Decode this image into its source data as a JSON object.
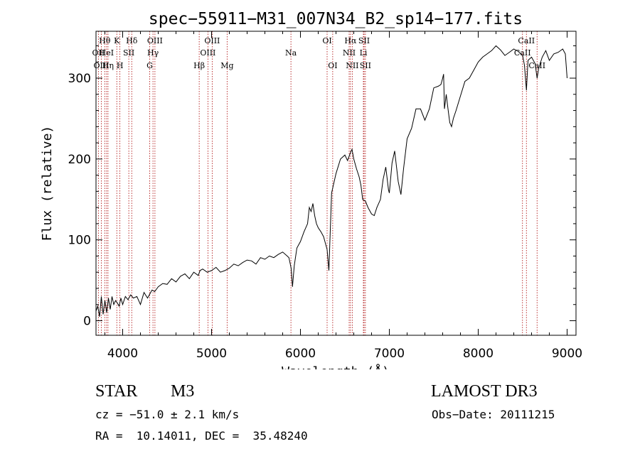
{
  "chart_data": {
    "type": "line",
    "title": "spec−55911−M31_007N34_B2_sp14−177.fits",
    "xlabel": "Wavelength (Å)",
    "ylabel": "Flux (relative)",
    "xlim": [
      3700,
      9100
    ],
    "ylim": [
      -18,
      358
    ],
    "xticks": [
      4000,
      5000,
      6000,
      7000,
      8000,
      9000
    ],
    "yticks": [
      0,
      100,
      200,
      300
    ],
    "grid": false,
    "series": [
      {
        "name": "flux",
        "x": [
          3700,
          3720,
          3740,
          3760,
          3780,
          3800,
          3820,
          3840,
          3860,
          3880,
          3900,
          3920,
          3940,
          3960,
          3980,
          4000,
          4030,
          4060,
          4090,
          4120,
          4160,
          4200,
          4240,
          4280,
          4300,
          4330,
          4360,
          4400,
          4450,
          4500,
          4550,
          4600,
          4650,
          4700,
          4750,
          4800,
          4850,
          4870,
          4900,
          4950,
          5000,
          5050,
          5100,
          5150,
          5200,
          5250,
          5300,
          5350,
          5400,
          5450,
          5500,
          5550,
          5600,
          5650,
          5700,
          5750,
          5800,
          5850,
          5870,
          5895,
          5910,
          5930,
          5960,
          6000,
          6040,
          6080,
          6100,
          6120,
          6140,
          6160,
          6180,
          6200,
          6230,
          6260,
          6300,
          6320,
          6350,
          6400,
          6450,
          6500,
          6530,
          6563,
          6580,
          6600,
          6630,
          6660,
          6680,
          6700,
          6730,
          6760,
          6800,
          6830,
          6860,
          6900,
          6930,
          6960,
          6990,
          7000,
          7030,
          7060,
          7100,
          7130,
          7160,
          7200,
          7250,
          7300,
          7350,
          7400,
          7450,
          7500,
          7550,
          7580,
          7600,
          7610,
          7620,
          7640,
          7660,
          7680,
          7700,
          7720,
          7750,
          7800,
          7850,
          7900,
          7950,
          8000,
          8050,
          8100,
          8150,
          8200,
          8250,
          8300,
          8350,
          8400,
          8450,
          8500,
          8520,
          8542,
          8560,
          8600,
          8640,
          8662,
          8680,
          8720,
          8760,
          8800,
          8850,
          8900,
          8950,
          8980,
          9000
        ],
        "y": [
          12,
          18,
          5,
          30,
          8,
          25,
          10,
          28,
          14,
          30,
          20,
          25,
          22,
          18,
          28,
          20,
          30,
          26,
          32,
          28,
          30,
          20,
          35,
          28,
          32,
          38,
          36,
          42,
          46,
          45,
          52,
          48,
          55,
          58,
          52,
          60,
          56,
          62,
          64,
          60,
          62,
          66,
          60,
          62,
          65,
          70,
          68,
          72,
          75,
          74,
          70,
          78,
          76,
          80,
          78,
          82,
          85,
          80,
          78,
          65,
          42,
          68,
          90,
          98,
          110,
          120,
          140,
          135,
          145,
          130,
          120,
          115,
          110,
          104,
          88,
          62,
          158,
          182,
          200,
          205,
          198,
          208,
          212,
          200,
          188,
          178,
          168,
          150,
          148,
          140,
          132,
          130,
          140,
          150,
          175,
          190,
          162,
          158,
          195,
          210,
          172,
          156,
          188,
          225,
          238,
          262,
          262,
          248,
          262,
          288,
          290,
          292,
          300,
          305,
          262,
          280,
          262,
          245,
          240,
          250,
          260,
          278,
          296,
          300,
          310,
          320,
          326,
          330,
          334,
          340,
          335,
          328,
          332,
          336,
          333,
          328,
          316,
          285,
          322,
          326,
          318,
          300,
          312,
          326,
          334,
          322,
          330,
          332,
          336,
          330,
          300
        ]
      }
    ],
    "lines": [
      {
        "label": "Hθ",
        "x": 3798,
        "row": 0
      },
      {
        "label": "OII",
        "x": 3727,
        "row": 1
      },
      {
        "label": "OIII",
        "x": 3760,
        "row": 2
      },
      {
        "label": "Hη",
        "x": 3835,
        "row": 2
      },
      {
        "label": "HeI",
        "x": 3819,
        "row": 1
      },
      {
        "label": "K",
        "x": 3934,
        "row": 0
      },
      {
        "label": "H",
        "x": 3969,
        "row": 2
      },
      {
        "label": "SII",
        "x": 4069,
        "row": 1
      },
      {
        "label": "Hδ",
        "x": 4102,
        "row": 0
      },
      {
        "label": "OIII",
        "x": 4363,
        "row": 0
      },
      {
        "label": "Hγ",
        "x": 4341,
        "row": 1
      },
      {
        "label": "G",
        "x": 4304,
        "row": 2
      },
      {
        "label": "Hβ",
        "x": 4861,
        "row": 2
      },
      {
        "label": "OIII",
        "x": 5007,
        "row": 0
      },
      {
        "label": "OIII",
        "x": 4959,
        "row": 1
      },
      {
        "label": "Mg",
        "x": 5175,
        "row": 2
      },
      {
        "label": "Na",
        "x": 5893,
        "row": 1
      },
      {
        "label": "OI",
        "x": 6300,
        "row": 0
      },
      {
        "label": "OI",
        "x": 6363,
        "row": 2
      },
      {
        "label": "Hα",
        "x": 6563,
        "row": 0
      },
      {
        "label": "NII",
        "x": 6548,
        "row": 1
      },
      {
        "label": "NII",
        "x": 6583,
        "row": 2
      },
      {
        "label": "SII",
        "x": 6716,
        "row": 0
      },
      {
        "label": "Li",
        "x": 6708,
        "row": 1
      },
      {
        "label": "SII",
        "x": 6731,
        "row": 2
      },
      {
        "label": "CaII",
        "x": 8542,
        "row": 0
      },
      {
        "label": "CaII",
        "x": 8498,
        "row": 1
      },
      {
        "label": "CaII",
        "x": 8662,
        "row": 2
      }
    ]
  },
  "info": {
    "class_type": "STAR",
    "subclass": "M3",
    "survey": "LAMOST DR3",
    "velocity": "cz = −51.0 ± 2.1 km/s",
    "obs_date": "Obs−Date: 20111215",
    "coords": "RA =  10.14011, DEC =  35.48240"
  },
  "colors": {
    "spectrum": "#000000",
    "line_marker": "#aa0000",
    "axis": "#000000"
  }
}
